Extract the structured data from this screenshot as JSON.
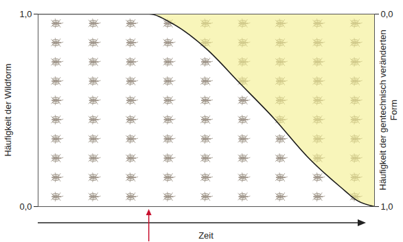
{
  "chart_data": {
    "type": "area",
    "xlabel": "Zeit",
    "ylabel": "Häufigkeit der Wildform",
    "y2label": "Häufigkeit der gentechnisch veränderten Form",
    "x": [
      0,
      1,
      2,
      3,
      3.3,
      4,
      5,
      6,
      7,
      8,
      9,
      9.5,
      10
    ],
    "series": [
      {
        "type": "line",
        "color": "#1a1a1a",
        "axis": "y",
        "values": [
          1,
          1,
          1,
          1,
          1,
          0.95,
          0.82,
          0.64,
          0.46,
          0.26,
          0.1,
          0.03,
          0
        ]
      },
      {
        "type": "area",
        "color": "#f3ee8c",
        "axis": "y2",
        "values": [
          0,
          0,
          0,
          0,
          0,
          0.05,
          0.18,
          0.36,
          0.54,
          0.74,
          0.9,
          0.97,
          1
        ]
      }
    ],
    "xlim": [
      0,
      10
    ],
    "ylim": [
      0,
      1
    ],
    "yticks": [
      {
        "value": 0,
        "label": "0,0"
      },
      {
        "value": 1,
        "label": "1,0"
      }
    ],
    "y2lim": [
      1,
      0
    ],
    "y2ticks": [
      {
        "value": 0,
        "label": "0,0"
      },
      {
        "value": 1,
        "label": "1,0"
      }
    ],
    "tick_labels": "y",
    "arrow": {
      "x": 3.3,
      "color": "#c8102e"
    }
  }
}
